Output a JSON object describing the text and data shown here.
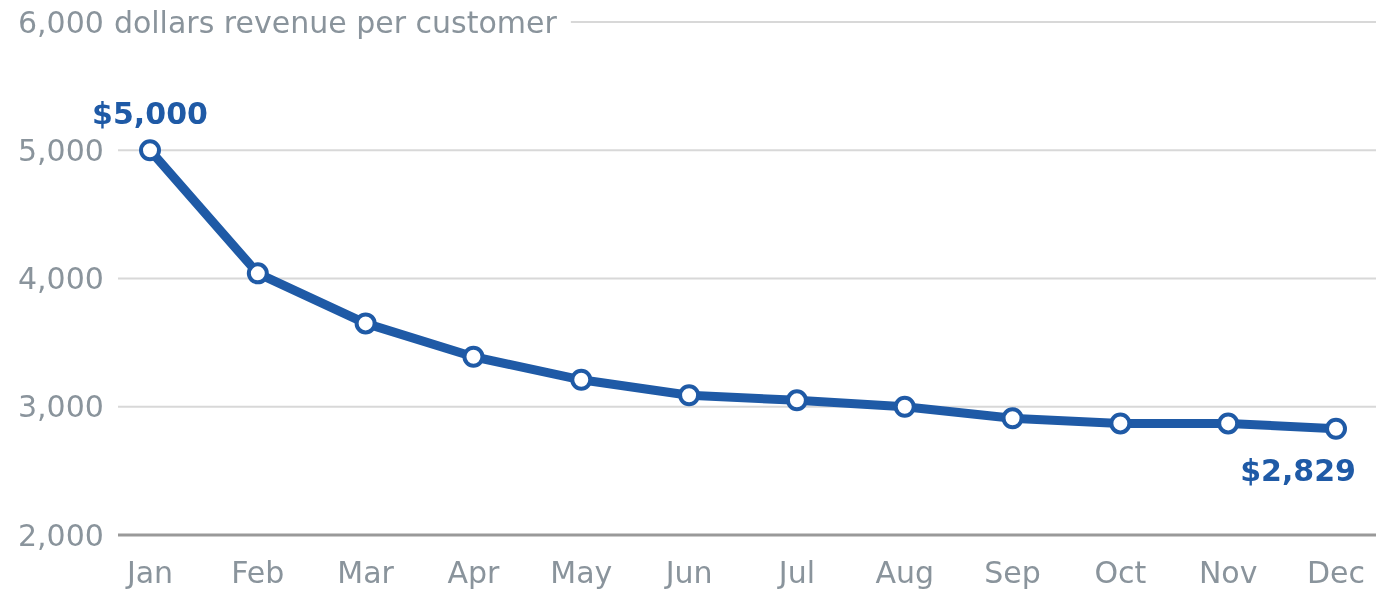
{
  "chart_data": {
    "type": "line",
    "ylabel": "dollars revenue per customer",
    "categories": [
      "Jan",
      "Feb",
      "Mar",
      "Apr",
      "May",
      "Jun",
      "Jul",
      "Aug",
      "Sep",
      "Oct",
      "Nov",
      "Dec"
    ],
    "series": [
      {
        "color": "#1f5aa6",
        "values": [
          5000,
          4040,
          3650,
          3390,
          3210,
          3090,
          3050,
          3000,
          2910,
          2870,
          2870,
          2829
        ],
        "value_labels": [
          "$5,000",
          null,
          null,
          null,
          null,
          null,
          null,
          null,
          null,
          null,
          null,
          "$2,829"
        ]
      }
    ],
    "ylim": [
      2000,
      6000
    ],
    "yticks": [
      {
        "value": 2000,
        "label": "2,000"
      },
      {
        "value": 3000,
        "label": "3,000"
      },
      {
        "value": 4000,
        "label": "4,000"
      },
      {
        "value": 5000,
        "label": "5,000"
      },
      {
        "value": 6000,
        "label": "6,000"
      }
    ],
    "grid": "y",
    "marker": "circle"
  }
}
